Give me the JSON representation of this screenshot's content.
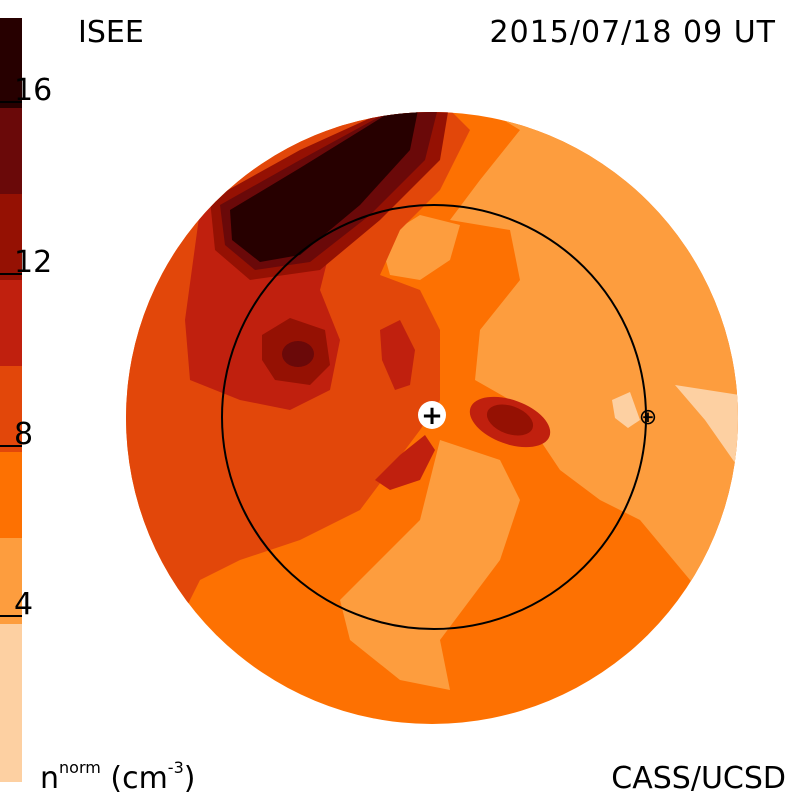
{
  "header": {
    "left_title": "ISEE",
    "right_title": "2015/07/18 09 UT"
  },
  "footer": {
    "quantity": "n",
    "quantity_sup": "norm",
    "unit_open": " (cm",
    "unit_sup": "-3",
    "unit_close": ")",
    "credit": "CASS/UCSD"
  },
  "colorbar": {
    "ticks": [
      "4",
      "8",
      "12",
      "16"
    ],
    "colors": [
      "#fdd0a2",
      "#fd9d3e",
      "#fd7102",
      "#e2470a",
      "#c0200e",
      "#951103",
      "#6a0909",
      "#270000"
    ]
  },
  "map": {
    "earth_marker": "⊕",
    "sun_marker": "+"
  }
}
